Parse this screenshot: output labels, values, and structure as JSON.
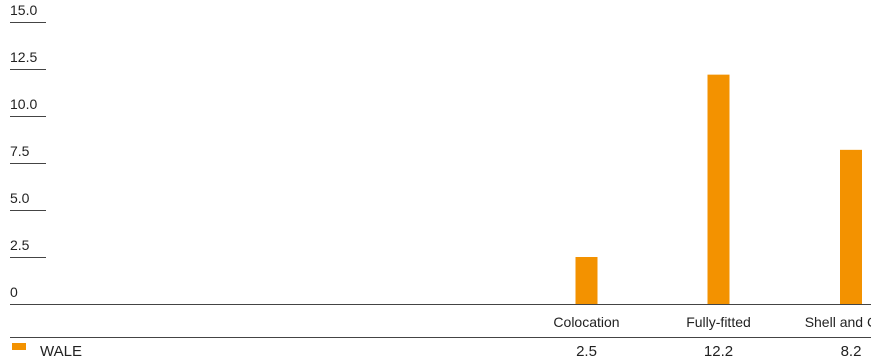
{
  "chart_data": {
    "type": "bar",
    "categories": [
      "Colocation",
      "Fully-fitted",
      "Shell and Core"
    ],
    "series": [
      {
        "name": "WALE",
        "values": [
          2.5,
          12.2,
          8.2
        ],
        "color": "#F39200"
      }
    ],
    "y_ticks": [
      "0",
      "2.5",
      "5.0",
      "7.5",
      "10.0",
      "12.5",
      "15.0"
    ],
    "ylim": [
      0,
      15
    ],
    "grid": false,
    "legend": "bottom-left, in data table row"
  }
}
